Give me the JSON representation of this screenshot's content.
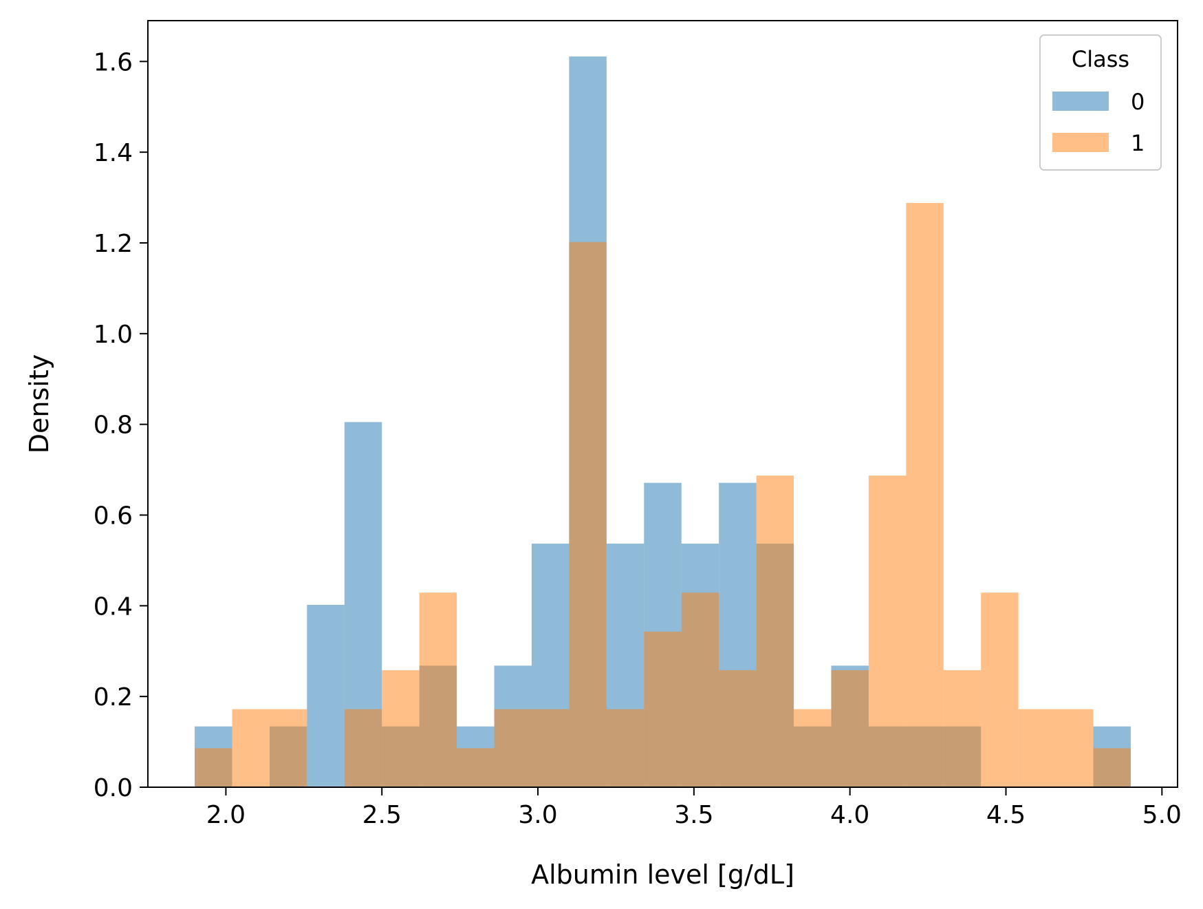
{
  "chart_data": {
    "type": "bar",
    "subtype": "overlapping-histogram",
    "xlabel": "Albumin level [g/dL]",
    "ylabel": "Density",
    "xlim": [
      1.75,
      5.05
    ],
    "ylim": [
      0,
      1.69
    ],
    "xticks": [
      2.0,
      2.5,
      3.0,
      3.5,
      4.0,
      4.5,
      5.0
    ],
    "xtick_labels": [
      "2.0",
      "2.5",
      "3.0",
      "3.5",
      "4.0",
      "4.5",
      "5.0"
    ],
    "yticks": [
      0.0,
      0.2,
      0.4,
      0.6,
      0.8,
      1.0,
      1.2,
      1.4,
      1.6
    ],
    "ytick_labels": [
      "0.0",
      "0.2",
      "0.4",
      "0.6",
      "0.8",
      "1.0",
      "1.2",
      "1.4",
      "1.6"
    ],
    "bin_start": 1.9,
    "bin_width": 0.12,
    "grid": false,
    "legend": {
      "title": "Class",
      "position": "top-right"
    },
    "series": [
      {
        "name": "0",
        "color": "#1f77b4",
        "opacity": 0.5,
        "values": [
          0.134,
          0.0,
          0.134,
          0.402,
          0.805,
          0.134,
          0.268,
          0.134,
          0.268,
          0.537,
          1.611,
          0.537,
          0.671,
          0.537,
          0.671,
          0.537,
          0.134,
          0.268,
          0.134,
          0.134,
          0.134,
          0.0,
          0.0,
          0.0,
          0.134
        ]
      },
      {
        "name": "1",
        "color": "#ff7f0e",
        "opacity": 0.5,
        "values": [
          0.086,
          0.172,
          0.172,
          0.0,
          0.172,
          0.258,
          0.429,
          0.086,
          0.172,
          0.172,
          1.202,
          0.172,
          0.343,
          0.429,
          0.258,
          0.687,
          0.172,
          0.258,
          0.687,
          1.288,
          0.258,
          0.429,
          0.172,
          0.172,
          0.086
        ]
      }
    ]
  }
}
